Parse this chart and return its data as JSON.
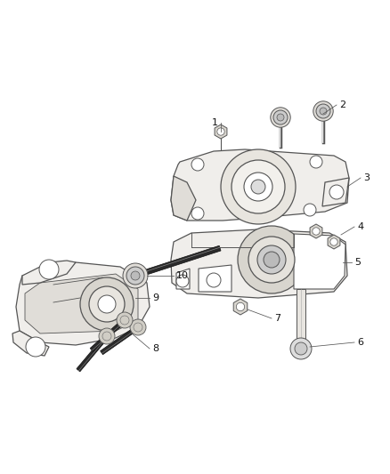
{
  "background_color": "#ffffff",
  "line_color": "#555555",
  "fill_light": "#f0eeeb",
  "fill_mid": "#e0ddd8",
  "fill_dark": "#c8c4bc",
  "label_color": "#111111",
  "figsize": [
    4.38,
    5.33
  ],
  "dpi": 100,
  "font_size": 8.0
}
